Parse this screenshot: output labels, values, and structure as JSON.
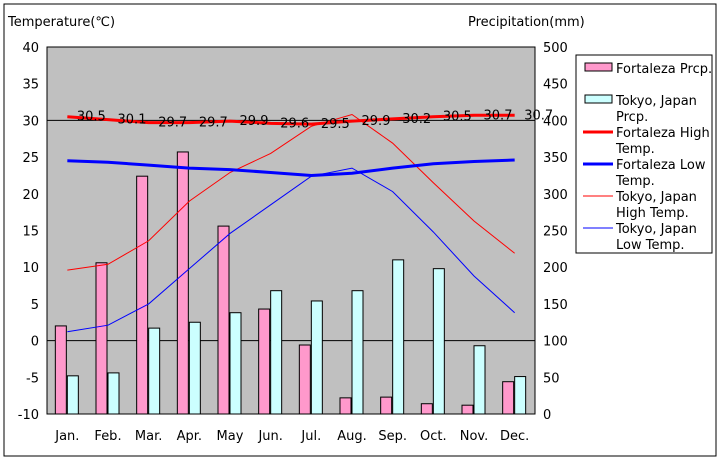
{
  "chart_data": {
    "type": "bar",
    "title_left": "Temperature(℃)",
    "title_right": "Precipitation(mm)",
    "categories": [
      "Jan.",
      "Feb.",
      "Mar.",
      "Apr.",
      "May",
      "Jun.",
      "Jul.",
      "Aug.",
      "Sep.",
      "Oct.",
      "Nov.",
      "Dec."
    ],
    "ylim_left": [
      -10,
      40
    ],
    "yticks_left": [
      -10,
      -5,
      0,
      5,
      10,
      15,
      20,
      25,
      30,
      35,
      40
    ],
    "ylim_right": [
      0,
      500
    ],
    "yticks_right": [
      0,
      50,
      100,
      150,
      200,
      250,
      300,
      350,
      400,
      450,
      500
    ],
    "series": [
      {
        "name": "Fortaleza Prcp.",
        "type": "bar",
        "axis": "right",
        "color": "#ff99cc",
        "values": [
          120,
          206,
          324,
          357,
          256,
          143,
          94,
          22,
          23,
          14,
          12,
          44
        ]
      },
      {
        "name": "Tokyo, Japan Prcp.",
        "type": "bar",
        "axis": "right",
        "color": "#ccffff",
        "values": [
          52,
          56,
          117,
          125,
          138,
          168,
          154,
          168,
          210,
          198,
          93,
          51
        ]
      },
      {
        "name": "Fortaleza High Temp.",
        "type": "line",
        "axis": "left",
        "color": "#ff0000",
        "width": 3,
        "values": [
          30.5,
          30.1,
          29.7,
          29.7,
          29.9,
          29.6,
          29.5,
          29.9,
          30.2,
          30.5,
          30.7,
          30.7
        ],
        "labels": [
          "30.5",
          "30.1",
          "29.7",
          "29.7",
          "29.9",
          "29.6",
          "29.5",
          "29.9",
          "30.2",
          "30.5",
          "30.7",
          "30.7"
        ]
      },
      {
        "name": "Fortaleza Low Temp.",
        "type": "line",
        "axis": "left",
        "color": "#0000ff",
        "width": 3,
        "values": [
          24.5,
          24.3,
          23.9,
          23.5,
          23.3,
          22.9,
          22.5,
          22.8,
          23.5,
          24.1,
          24.4,
          24.6
        ]
      },
      {
        "name": "Tokyo, Japan High Temp.",
        "type": "line",
        "axis": "left",
        "color": "#ff0000",
        "width": 1,
        "values": [
          9.6,
          10.4,
          13.6,
          19.0,
          22.9,
          25.5,
          29.2,
          30.8,
          26.9,
          21.5,
          16.3,
          11.9
        ]
      },
      {
        "name": "Tokyo, Japan Low Temp.",
        "type": "line",
        "axis": "left",
        "color": "#0000ff",
        "width": 1,
        "values": [
          1.2,
          2.1,
          5.0,
          9.8,
          14.6,
          18.5,
          22.4,
          23.5,
          20.3,
          14.8,
          8.8,
          3.8
        ]
      }
    ],
    "legend": {
      "placement": "right",
      "entries": [
        [
          "Fortaleza Prcp."
        ],
        [
          "Tokyo, Japan",
          "Prcp."
        ],
        [
          "Fortaleza High",
          "Temp."
        ],
        [
          "Fortaleza Low",
          "Temp."
        ],
        [
          "Tokyo, Japan",
          "High Temp."
        ],
        [
          "Tokyo, Japan",
          "Low Temp."
        ]
      ]
    }
  }
}
